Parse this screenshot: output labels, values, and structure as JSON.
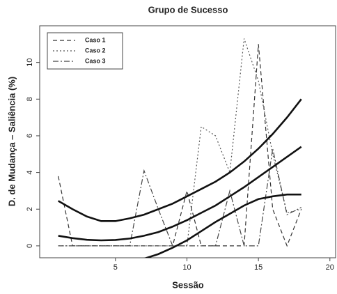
{
  "chart_data": {
    "type": "line",
    "title": "Grupo de Sucesso",
    "xlabel": "Sessão",
    "ylabel": "D. de Mudança – Saliência (%)",
    "x": [
      1,
      2,
      3,
      4,
      5,
      6,
      7,
      8,
      9,
      10,
      11,
      12,
      13,
      14,
      15,
      16,
      17,
      18
    ],
    "series": [
      {
        "name": "Caso 1",
        "color": "#333333",
        "dash": "6,4",
        "values": [
          3.8,
          0,
          0,
          0,
          0,
          0,
          0,
          0,
          0,
          3,
          0,
          0,
          0,
          0,
          11,
          2,
          0,
          2
        ]
      },
      {
        "name": "Caso 2",
        "color": "#555555",
        "dash": "2,3",
        "values": [
          0,
          0,
          0,
          0,
          0,
          0,
          0,
          0,
          0,
          0,
          6.5,
          6,
          4,
          11.3,
          9,
          5,
          1.8,
          2
        ]
      },
      {
        "name": "Caso 3",
        "color": "#444444",
        "dash": "8,3,2,3",
        "values": [
          0,
          0,
          0,
          0,
          0,
          0,
          4.1,
          2,
          0,
          0,
          0,
          0,
          3,
          0,
          0,
          5.3,
          1.7,
          2.1
        ]
      }
    ],
    "curves": [
      {
        "color": "#111111",
        "values": [
          2.45,
          2.0,
          1.6,
          1.35,
          1.35,
          1.5,
          1.7,
          2.0,
          2.3,
          2.7,
          3.1,
          3.5,
          4.0,
          4.6,
          5.3,
          6.1,
          7.0,
          8.0
        ]
      },
      {
        "color": "#111111",
        "values": [
          0.55,
          0.42,
          0.33,
          0.3,
          0.32,
          0.4,
          0.55,
          0.75,
          1.05,
          1.4,
          1.8,
          2.2,
          2.7,
          3.2,
          3.75,
          4.3,
          4.85,
          5.4
        ]
      },
      {
        "color": "#111111",
        "values": [
          null,
          null,
          null,
          null,
          null,
          null,
          -0.7,
          -0.45,
          -0.1,
          0.3,
          0.8,
          1.3,
          1.75,
          2.2,
          2.55,
          2.7,
          2.8,
          2.8
        ]
      }
    ],
    "xlim": [
      -0.3,
      20.4
    ],
    "xticks": [
      5,
      10,
      15,
      20
    ],
    "ylim": [
      -0.65,
      12
    ],
    "yticks": [
      0,
      2,
      4,
      6,
      8,
      10
    ],
    "legend": "upper left"
  }
}
